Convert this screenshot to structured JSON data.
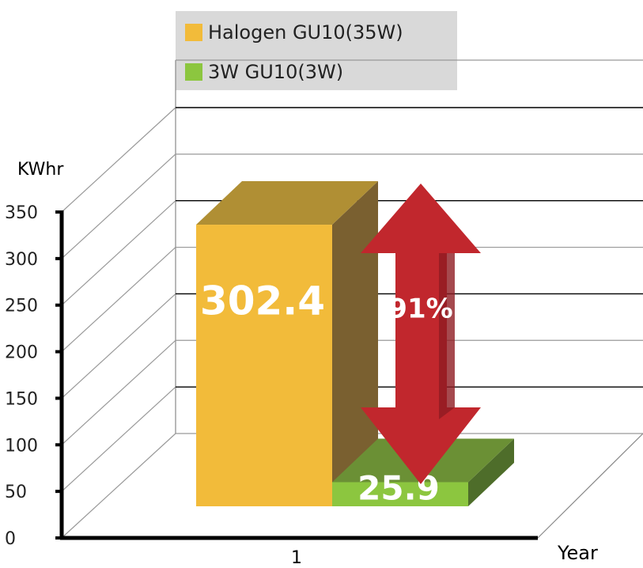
{
  "chart_data": {
    "type": "bar3d",
    "categories": [
      "1"
    ],
    "series": [
      {
        "name": "Halogen GU10(35W)",
        "color": "#f2bb3a",
        "side_color": "#7a6030",
        "top_color": "#b08f34",
        "values": [
          302.4
        ]
      },
      {
        "name": "3W GU10(3W)",
        "color": "#8cc63f",
        "side_color": "#4e6d2a",
        "top_color": "#6b9035",
        "values": [
          25.9
        ]
      }
    ],
    "ylabel": "KWhr",
    "xlabel": "Year",
    "annotation": "91%",
    "ylim": [
      0,
      350
    ],
    "yticks": [
      0,
      50,
      100,
      150,
      200,
      250,
      300,
      350
    ],
    "grid": true
  }
}
